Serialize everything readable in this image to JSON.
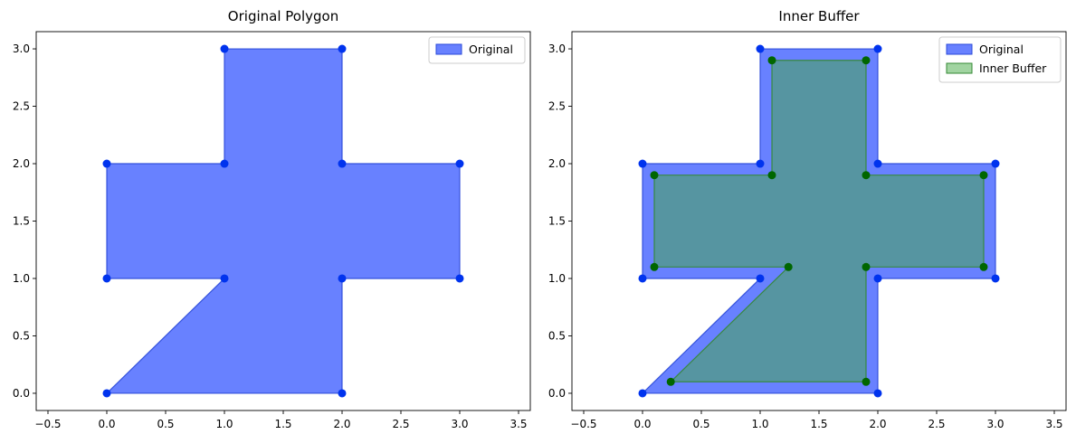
{
  "chart_data": [
    {
      "type": "area",
      "title": "Original Polygon",
      "xlabel": "",
      "ylabel": "",
      "xlim": [
        -0.6,
        3.6
      ],
      "ylim": [
        -0.15,
        3.15
      ],
      "xticks": [
        -0.5,
        0.0,
        0.5,
        1.0,
        1.5,
        2.0,
        2.5,
        3.0,
        3.5
      ],
      "xtick_labels": [
        "−0.5",
        "0.0",
        "0.5",
        "1.0",
        "1.5",
        "2.0",
        "2.5",
        "3.0",
        "3.5"
      ],
      "yticks": [
        0.0,
        0.5,
        1.0,
        1.5,
        2.0,
        2.5,
        3.0
      ],
      "ytick_labels": [
        "0.0",
        "0.5",
        "1.0",
        "1.5",
        "2.0",
        "2.5",
        "3.0"
      ],
      "grid": false,
      "legend_position": "top-right",
      "series": [
        {
          "name": "Original",
          "fill": "#3355ff",
          "edge": "#2a49d8",
          "marker": "#0033ee",
          "points": [
            [
              0,
              0
            ],
            [
              2,
              0
            ],
            [
              2,
              1
            ],
            [
              3,
              1
            ],
            [
              3,
              2
            ],
            [
              2,
              2
            ],
            [
              2,
              3
            ],
            [
              1,
              3
            ],
            [
              1,
              2
            ],
            [
              0,
              2
            ],
            [
              0,
              1
            ],
            [
              1,
              1
            ]
          ]
        }
      ]
    },
    {
      "type": "area",
      "title": "Inner Buffer",
      "xlabel": "",
      "ylabel": "",
      "xlim": [
        -0.6,
        3.6
      ],
      "ylim": [
        -0.15,
        3.15
      ],
      "xticks": [
        -0.5,
        0.0,
        0.5,
        1.0,
        1.5,
        2.0,
        2.5,
        3.0,
        3.5
      ],
      "xtick_labels": [
        "−0.5",
        "0.0",
        "0.5",
        "1.0",
        "1.5",
        "2.0",
        "2.5",
        "3.0",
        "3.5"
      ],
      "yticks": [
        0.0,
        0.5,
        1.0,
        1.5,
        2.0,
        2.5,
        3.0
      ],
      "ytick_labels": [
        "0.0",
        "0.5",
        "1.0",
        "1.5",
        "2.0",
        "2.5",
        "3.0"
      ],
      "grid": false,
      "legend_position": "top-right",
      "series": [
        {
          "name": "Original",
          "fill": "#3355ff",
          "edge": "#2a49d8",
          "marker": "#0033ee",
          "points": [
            [
              0,
              0
            ],
            [
              2,
              0
            ],
            [
              2,
              1
            ],
            [
              3,
              1
            ],
            [
              3,
              2
            ],
            [
              2,
              2
            ],
            [
              2,
              3
            ],
            [
              1,
              3
            ],
            [
              1,
              2
            ],
            [
              0,
              2
            ],
            [
              0,
              1
            ],
            [
              1,
              1
            ]
          ]
        },
        {
          "name": "Inner Buffer",
          "fill": "#44aa44",
          "edge": "#338833",
          "marker": "#006600",
          "points": [
            [
              0.24,
              0.1
            ],
            [
              1.9,
              0.1
            ],
            [
              1.9,
              1.1
            ],
            [
              2.9,
              1.1
            ],
            [
              2.9,
              1.9
            ],
            [
              1.9,
              1.9
            ],
            [
              1.9,
              2.9
            ],
            [
              1.1,
              2.9
            ],
            [
              1.1,
              1.9
            ],
            [
              0.1,
              1.9
            ],
            [
              0.1,
              1.1
            ],
            [
              1.24,
              1.1
            ]
          ]
        }
      ]
    }
  ]
}
